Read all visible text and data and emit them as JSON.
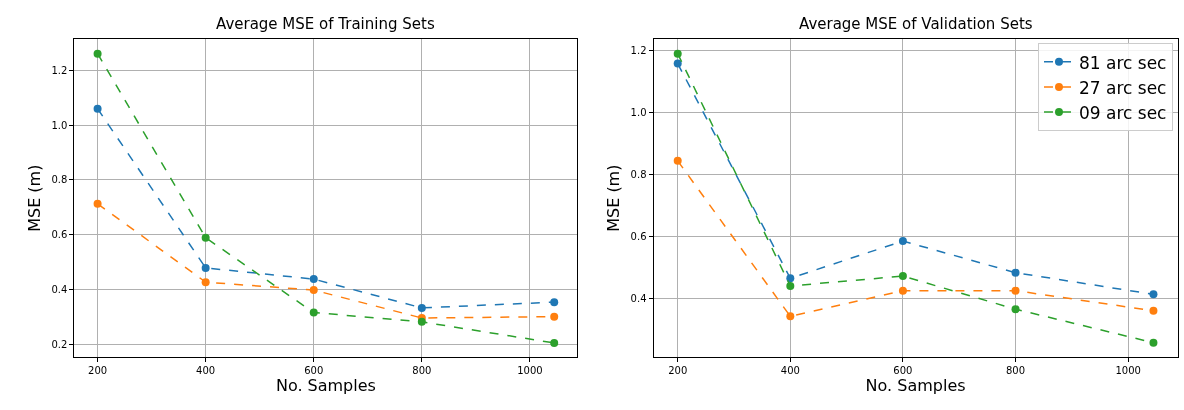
{
  "chart_data": [
    {
      "type": "line",
      "title": "Average MSE of Training Sets",
      "xlabel": "No. Samples",
      "ylabel": "MSE (m)",
      "x": [
        200,
        400,
        600,
        800,
        1045
      ],
      "series": [
        {
          "color": "#1f77b4",
          "values": [
            1.06,
            0.479,
            0.438,
            0.333,
            0.354
          ]
        },
        {
          "color": "#ff7f0e",
          "values": [
            0.713,
            0.427,
            0.398,
            0.296,
            0.301
          ]
        },
        {
          "color": "#2ca02c",
          "values": [
            1.261,
            0.589,
            0.316,
            0.282,
            0.205
          ]
        }
      ],
      "xlim": [
        157,
        1088
      ],
      "ylim": [
        0.154,
        1.313
      ],
      "xticks": [
        200,
        400,
        600,
        800,
        1000
      ],
      "yticks": [
        0.2,
        0.4,
        0.6,
        0.8,
        {
          "value": 1,
          "label": "1.0"
        },
        1.2
      ],
      "grid": true,
      "marker": "circle",
      "line_style": "dashed",
      "legend": false
    },
    {
      "type": "line",
      "title": "Average MSE of Validation Sets",
      "xlabel": "No. Samples",
      "ylabel": "MSE (m)",
      "x": [
        200,
        400,
        600,
        800,
        1045
      ],
      "series": [
        {
          "name": "81 arc sec",
          "color": "#1f77b4",
          "values": [
            1.158,
            0.465,
            0.585,
            0.483,
            0.413
          ]
        },
        {
          "name": "27 arc sec",
          "color": "#ff7f0e",
          "values": [
            0.844,
            0.342,
            0.425,
            0.425,
            0.36
          ]
        },
        {
          "name": "09 arc sec",
          "color": "#2ca02c",
          "values": [
            1.19,
            0.44,
            0.472,
            0.365,
            0.257
          ]
        }
      ],
      "xlim": [
        157,
        1088
      ],
      "ylim": [
        0.211,
        1.236
      ],
      "xticks": [
        200,
        400,
        600,
        800,
        1000
      ],
      "yticks": [
        0.4,
        0.6,
        0.8,
        {
          "value": 1,
          "label": "1.0"
        },
        1.2
      ],
      "grid": true,
      "marker": "circle",
      "line_style": "dashed",
      "legend": "top right"
    }
  ]
}
